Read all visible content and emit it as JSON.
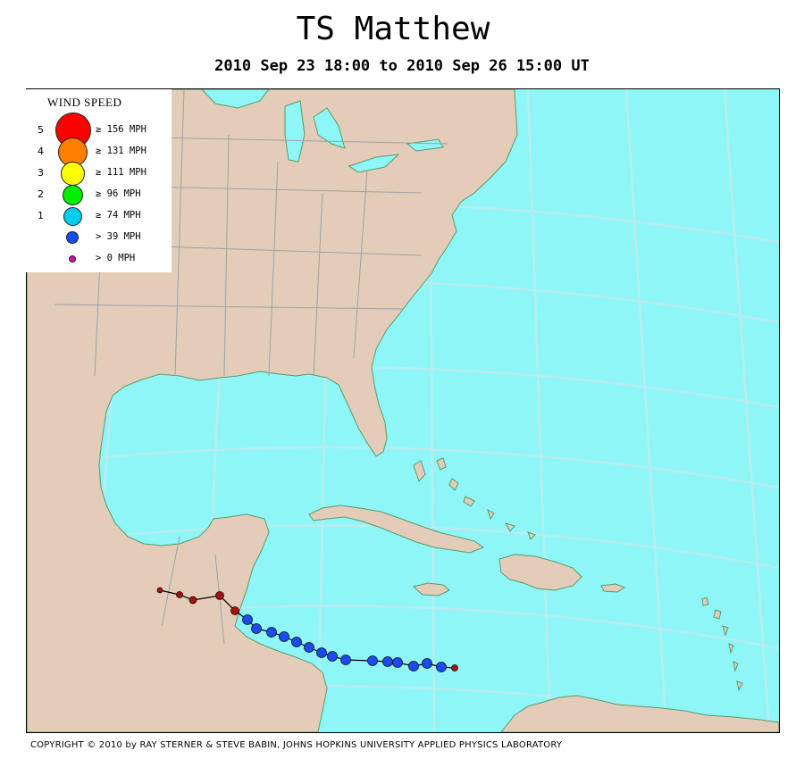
{
  "title": "TS Matthew",
  "subtitle": "2010 Sep 23 18:00 to 2010 Sep 26 15:00 UT",
  "legend": {
    "title": "WIND SPEED",
    "rows": [
      {
        "category": "5",
        "label": "≥ 156 MPH",
        "color": "#ff0000"
      },
      {
        "category": "4",
        "label": "≥ 131 MPH",
        "color": "#ff7f00"
      },
      {
        "category": "3",
        "label": "≥ 111 MPH",
        "color": "#ffff00"
      },
      {
        "category": "2",
        "label": "≥ 96 MPH",
        "color": "#00ee00"
      },
      {
        "category": "1",
        "label": "≥ 74 MPH",
        "color": "#00ccee"
      },
      {
        "category": "",
        "label": "> 39 MPH",
        "color": "#1a4cf0"
      },
      {
        "category": "",
        "label": "> 0 MPH",
        "color": "#e000c0"
      }
    ]
  },
  "colors": {
    "ocean": "#8ef6f7",
    "land": "#e4cdb8",
    "coast": "#5a9a6a",
    "border": "#9aa2a8",
    "grid": "#b7ecef",
    "track_line": "#000000",
    "track_low": "#aa1010",
    "track_storm": "#1a4cf0"
  },
  "track": [
    {
      "stage": "low"
    },
    {
      "stage": "low"
    },
    {
      "stage": "low"
    },
    {
      "stage": "low"
    },
    {
      "stage": "low"
    },
    {
      "stage": "storm"
    },
    {
      "stage": "storm"
    },
    {
      "stage": "storm"
    },
    {
      "stage": "storm"
    },
    {
      "stage": "storm"
    },
    {
      "stage": "storm"
    },
    {
      "stage": "storm"
    },
    {
      "stage": "storm"
    },
    {
      "stage": "storm"
    },
    {
      "stage": "storm"
    },
    {
      "stage": "storm"
    },
    {
      "stage": "storm"
    },
    {
      "stage": "storm"
    },
    {
      "stage": "storm"
    },
    {
      "stage": "storm"
    },
    {
      "stage": "low"
    }
  ],
  "copyright": "COPYRIGHT © 2010 by RAY STERNER & STEVE BABIN, JOHNS HOPKINS UNIVERSITY APPLIED PHYSICS LABORATORY"
}
